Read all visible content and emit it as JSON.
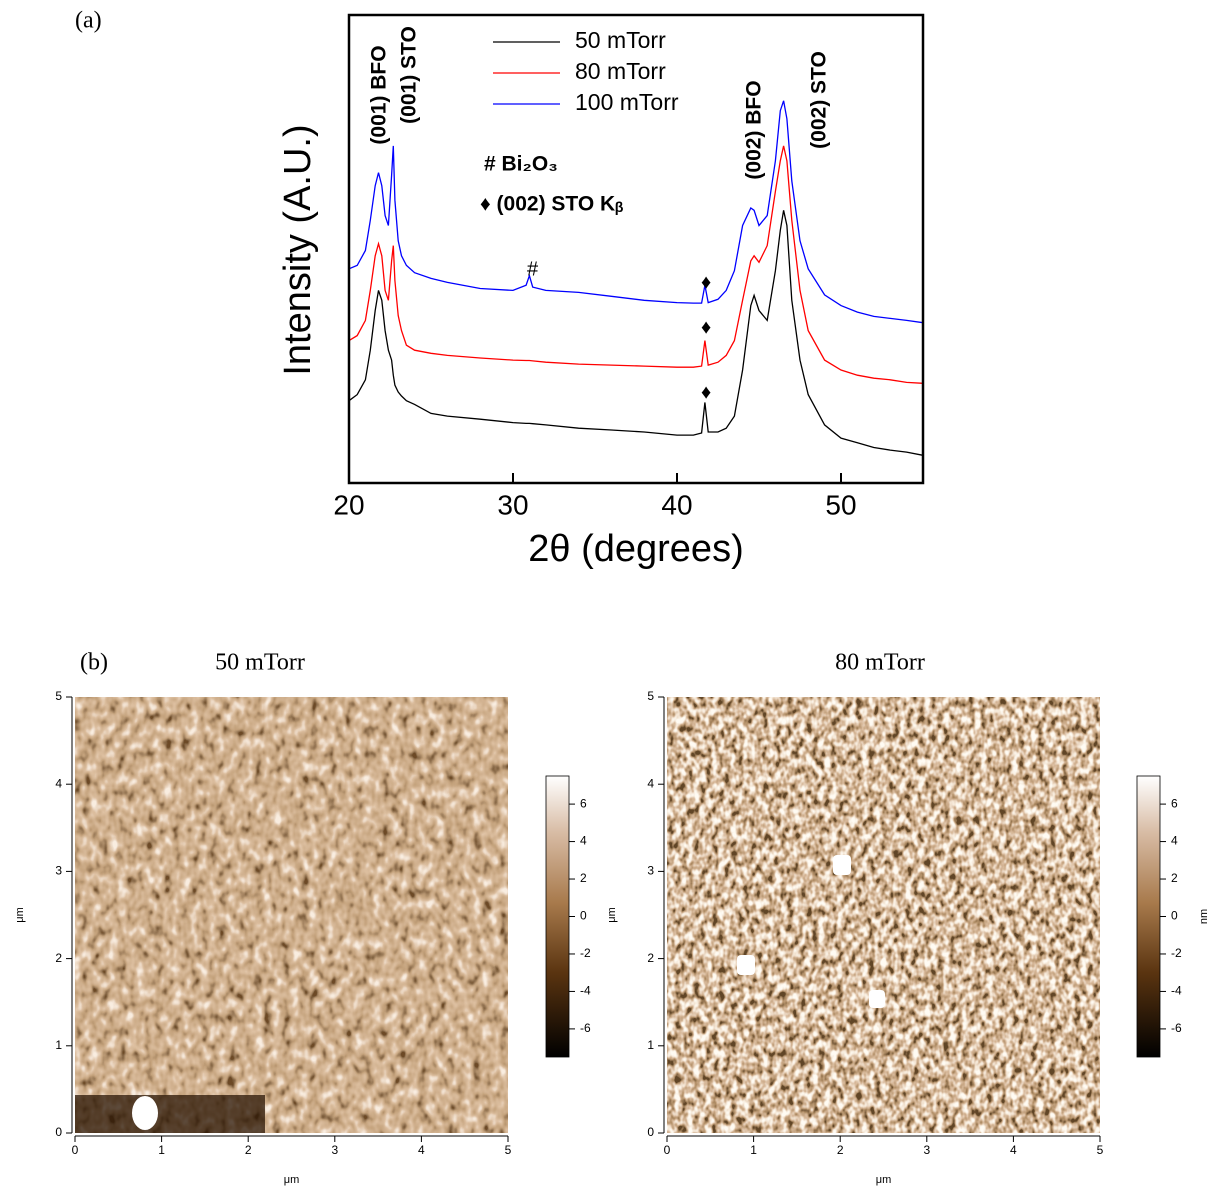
{
  "chart_data": {
    "type": "line",
    "panel_label": "(a)",
    "xlabel": "2θ (degrees)",
    "ylabel": "Intensity (A.U.)",
    "x": [
      20,
      20.5,
      21,
      21.3,
      21.6,
      21.8,
      22.0,
      22.2,
      22.4,
      22.6,
      22.7,
      22.8,
      23.0,
      23.2,
      23.5,
      24,
      25,
      26,
      28,
      30,
      30.8,
      31,
      31.2,
      32,
      34,
      36,
      38,
      40,
      41,
      41.5,
      41.7,
      41.9,
      42.5,
      43,
      43.5,
      44,
      44.5,
      44.7,
      45,
      45.5,
      46,
      46.3,
      46.5,
      46.7,
      47,
      47.5,
      48,
      49,
      50,
      51,
      52,
      53,
      54,
      55
    ],
    "series": [
      {
        "name": "50  mTorr",
        "color": "#000000",
        "values": [
          17,
          21,
          35,
          97,
          380,
          760,
          540,
          190,
          97,
          69,
          41,
          29,
          23,
          20,
          17,
          15,
          11,
          10,
          9,
          8,
          7.8,
          7.8,
          7.7,
          7.4,
          6.6,
          6.2,
          5.8,
          5.2,
          5.2,
          5.6,
          16,
          5.8,
          5.8,
          6.6,
          10,
          49,
          450,
          640,
          380,
          270,
          1500,
          6000,
          12000,
          7100,
          540,
          69,
          21,
          7.4,
          4.7,
          4,
          3.4,
          3.1,
          2.9,
          2.6
        ]
      },
      {
        "name": "80  mTorr",
        "color": "#ff0000",
        "values": [
          135,
          160,
          270,
          760,
          2500,
          3800,
          2500,
          760,
          540,
          2100,
          3550,
          1070,
          320,
          190,
          115,
          97,
          87,
          81,
          74,
          69,
          68,
          68,
          67,
          64,
          60,
          58,
          56,
          54,
          54,
          56,
          135,
          58,
          64,
          81,
          135,
          540,
          2100,
          2500,
          2000,
          3550,
          23000,
          66000,
          110000,
          66000,
          8500,
          760,
          190,
          69,
          49,
          41,
          37,
          35,
          32,
          31
        ]
      },
      {
        "name": "100  mTorr",
        "color": "#0000ff",
        "values": [
          1600,
          1800,
          3000,
          8500,
          28000,
          44000,
          28000,
          10000,
          7100,
          40000,
          110000,
          17000,
          4200,
          2500,
          1800,
          1400,
          1150,
          1000,
          810,
          760,
          910,
          1260,
          850,
          760,
          710,
          620,
          540,
          500,
          490,
          490,
          910,
          500,
          560,
          760,
          1500,
          7100,
          13000,
          12000,
          7100,
          10000,
          66000,
          370000,
          520000,
          280000,
          33000,
          4200,
          1600,
          650,
          450,
          360,
          310,
          290,
          270,
          250
        ]
      }
    ],
    "xlim": [
      20,
      55
    ],
    "xticks": [
      20,
      30,
      40,
      50
    ],
    "ylim": [
      1,
      10000000
    ],
    "log_y": true,
    "legend": "top",
    "annotations": [
      "(001) BFO",
      "(001) STO",
      "(002) BFO",
      "(002) STO",
      "# Bi₂O₃",
      "♦ (002) STO Kᵦ",
      "#",
      "♦",
      "♦",
      "♦"
    ]
  },
  "afm": {
    "panel_label": "(b)",
    "images": [
      {
        "title": "50 mTorr",
        "xlabel": "μm",
        "ylabel": "μm",
        "xlim": [
          0,
          5
        ],
        "ylim": [
          0,
          5
        ],
        "xticks": [
          0,
          1,
          2,
          3,
          4,
          5
        ],
        "yticks": [
          0,
          1,
          2,
          3,
          4,
          5
        ],
        "colorbar_lim": [
          -7.5,
          7.5
        ],
        "colorbar_ticks": [
          6,
          4,
          2,
          0,
          -2,
          -4,
          -6
        ]
      },
      {
        "title": "80 mTorr",
        "xlabel": "μm",
        "ylabel": "μm",
        "xlim": [
          0,
          5
        ],
        "ylim": [
          0,
          5
        ],
        "xticks": [
          0,
          1,
          2,
          3,
          4,
          5
        ],
        "yticks": [
          0,
          1,
          2,
          3,
          4,
          5
        ],
        "colorbar_lim": [
          -7.5,
          7.5
        ],
        "colorbar_ticks": [
          6,
          4,
          2,
          0,
          -2,
          -4,
          -6
        ],
        "colorbar_label": "nm"
      }
    ]
  }
}
